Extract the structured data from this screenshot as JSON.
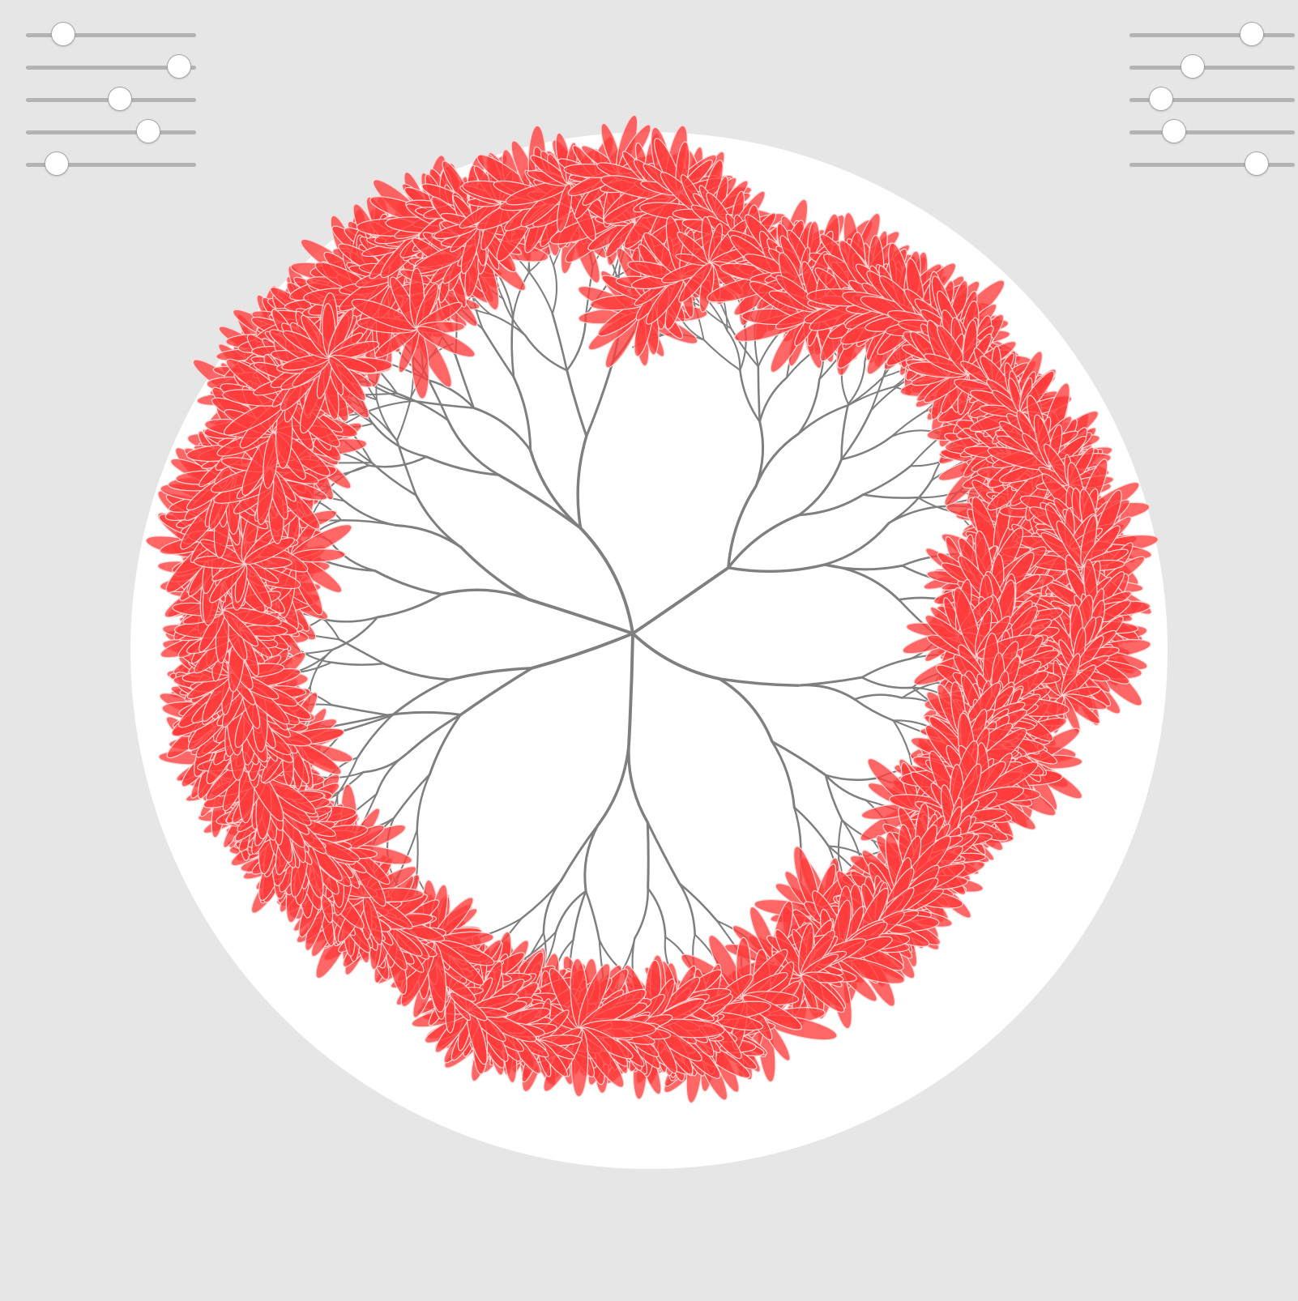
{
  "app": {
    "background_color": "#e6e6e6",
    "canvas_color": "#ffffff",
    "branch_color": "#7f7f7f",
    "petal_color": "#ff3b3b",
    "petal_highlight_color": "#ffd6d6"
  },
  "sliders_left": [
    {
      "id": "left-1",
      "value": 0.22
    },
    {
      "id": "left-2",
      "value": 0.9
    },
    {
      "id": "left-3",
      "value": 0.55
    },
    {
      "id": "left-4",
      "value": 0.72
    },
    {
      "id": "left-5",
      "value": 0.18
    }
  ],
  "sliders_right": [
    {
      "id": "right-1",
      "value": 0.74
    },
    {
      "id": "right-2",
      "value": 0.38
    },
    {
      "id": "right-3",
      "value": 0.19
    },
    {
      "id": "right-4",
      "value": 0.27
    },
    {
      "id": "right-5",
      "value": 0.77
    }
  ],
  "tree": {
    "main_branches": 5,
    "depth": 6,
    "flowers_per_tip": 1,
    "petals_per_flower": 12
  }
}
